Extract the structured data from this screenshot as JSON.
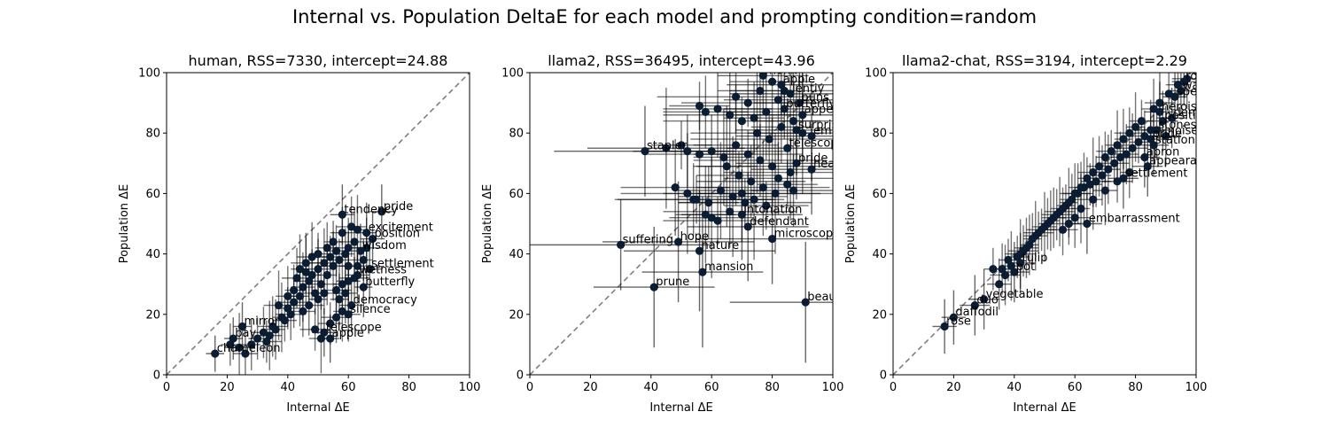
{
  "figure": {
    "suptitle": "Internal vs. Population DeltaE for each model and prompting condition=random"
  },
  "chart_data": [
    {
      "type": "scatter",
      "title": "human, RSS=7330, intercept=24.88",
      "xlabel": "Internal ΔE",
      "ylabel": "Population ΔE",
      "xlim": [
        0,
        100
      ],
      "ylim": [
        0,
        100
      ],
      "xticks": [
        "0",
        "20",
        "40",
        "60",
        "80",
        "100"
      ],
      "yticks": [
        "0",
        "20",
        "40",
        "60",
        "80",
        "100"
      ],
      "reference_line": "y = x (dashed)",
      "grid": false,
      "labeled_points": [
        {
          "label": "pride",
          "x": 71,
          "y": 54,
          "xerr": 4,
          "yerr": 9
        },
        {
          "label": "tendency",
          "x": 58,
          "y": 53,
          "xerr": 4,
          "yerr": 10
        },
        {
          "label": "excitement",
          "x": 66,
          "y": 47,
          "xerr": 3,
          "yerr": 10
        },
        {
          "label": "position",
          "x": 68,
          "y": 45,
          "xerr": 4,
          "yerr": 9
        },
        {
          "label": "wisdom",
          "x": 64,
          "y": 41,
          "xerr": 3,
          "yerr": 9
        },
        {
          "label": "settlement",
          "x": 67,
          "y": 35,
          "xerr": 4,
          "yerr": 10
        },
        {
          "label": "wetness",
          "x": 63,
          "y": 33,
          "xerr": 4,
          "yerr": 9
        },
        {
          "label": "butterfly",
          "x": 65,
          "y": 29,
          "xerr": 3,
          "yerr": 10
        },
        {
          "label": "democracy",
          "x": 61,
          "y": 23,
          "xerr": 4,
          "yerr": 9
        },
        {
          "label": "silence",
          "x": 60,
          "y": 20,
          "xerr": 4,
          "yerr": 9
        },
        {
          "label": "telescope",
          "x": 52,
          "y": 14,
          "xerr": 4,
          "yerr": 8
        },
        {
          "label": "apple",
          "x": 54,
          "y": 12,
          "xerr": 3,
          "yerr": 8
        },
        {
          "label": "mirror",
          "x": 25,
          "y": 16,
          "xerr": 3,
          "yerr": 8
        },
        {
          "label": "bay",
          "x": 22,
          "y": 12,
          "xerr": 3,
          "yerr": 7
        },
        {
          "label": "chameleon",
          "x": 16,
          "y": 7,
          "xerr": 3,
          "yerr": 6
        }
      ],
      "other_points": [
        [
          30,
          12
        ],
        [
          32,
          14
        ],
        [
          35,
          16
        ],
        [
          38,
          19
        ],
        [
          40,
          22
        ],
        [
          42,
          24
        ],
        [
          44,
          26
        ],
        [
          45,
          29
        ],
        [
          47,
          31
        ],
        [
          48,
          33
        ],
        [
          50,
          35
        ],
        [
          52,
          37
        ],
        [
          54,
          39
        ],
        [
          56,
          41
        ],
        [
          43,
          32
        ],
        [
          46,
          34
        ],
        [
          49,
          27
        ],
        [
          51,
          30
        ],
        [
          53,
          33
        ],
        [
          55,
          36
        ],
        [
          57,
          38
        ],
        [
          59,
          40
        ],
        [
          60,
          42
        ],
        [
          62,
          44
        ],
        [
          55,
          44
        ],
        [
          58,
          47
        ],
        [
          61,
          49
        ],
        [
          63,
          48
        ],
        [
          39,
          18
        ],
        [
          41,
          20
        ],
        [
          36,
          15
        ],
        [
          34,
          13
        ],
        [
          33,
          11
        ],
        [
          28,
          10
        ],
        [
          26,
          7
        ],
        [
          24,
          9
        ],
        [
          21,
          10
        ],
        [
          45,
          21
        ],
        [
          47,
          23
        ],
        [
          50,
          25
        ],
        [
          52,
          27
        ],
        [
          56,
          28
        ],
        [
          58,
          30
        ],
        [
          60,
          31
        ],
        [
          62,
          32
        ],
        [
          57,
          25
        ],
        [
          59,
          27
        ],
        [
          48,
          39
        ],
        [
          50,
          40
        ],
        [
          53,
          42
        ],
        [
          46,
          37
        ],
        [
          44,
          35
        ],
        [
          54,
          17
        ],
        [
          56,
          19
        ],
        [
          58,
          21
        ],
        [
          51,
          12
        ],
        [
          49,
          15
        ],
        [
          42,
          28
        ],
        [
          40,
          26
        ],
        [
          37,
          23
        ],
        [
          65,
          38
        ],
        [
          63,
          36
        ],
        [
          66,
          42
        ],
        [
          60,
          36
        ]
      ]
    },
    {
      "type": "scatter",
      "title": "llama2, RSS=36495, intercept=43.96",
      "xlabel": "Internal ΔE",
      "ylabel": "Population ΔE",
      "xlim": [
        0,
        100
      ],
      "ylim": [
        0,
        100
      ],
      "xticks": [
        "0",
        "20",
        "40",
        "60",
        "80",
        "100"
      ],
      "yticks": [
        "0",
        "20",
        "40",
        "60",
        "80",
        "100"
      ],
      "reference_line": "y = x (dashed)",
      "grid": false,
      "labeled_points": [
        {
          "label": "monk",
          "x": 77,
          "y": 99,
          "xerr": 15,
          "yerr": 12
        },
        {
          "label": "apple",
          "x": 83,
          "y": 96,
          "xerr": 18,
          "yerr": 10
        },
        {
          "label": "lentiy",
          "x": 86,
          "y": 93,
          "xerr": 20,
          "yerr": 10
        },
        {
          "label": "puns",
          "x": 89,
          "y": 90,
          "xerr": 15,
          "yerr": 12
        },
        {
          "label": "butterfly",
          "x": 84,
          "y": 88,
          "xerr": 20,
          "yerr": 10
        },
        {
          "label": "appearance",
          "x": 90,
          "y": 86,
          "xerr": 22,
          "yerr": 15
        },
        {
          "label": "surprise",
          "x": 88,
          "y": 81,
          "xerr": 20,
          "yerr": 15
        },
        {
          "label": "embarrassment",
          "x": 93,
          "y": 79,
          "xerr": 25,
          "yerr": 15
        },
        {
          "label": "telescope",
          "x": 85,
          "y": 75,
          "xerr": 20,
          "yerr": 15
        },
        {
          "label": "headphones",
          "x": 93,
          "y": 68,
          "xerr": 20,
          "yerr": 15
        },
        {
          "label": "pride",
          "x": 88,
          "y": 70,
          "xerr": 20,
          "yerr": 12
        },
        {
          "label": "stapler",
          "x": 38,
          "y": 74,
          "xerr": 30,
          "yerr": 15
        },
        {
          "label": "intonation",
          "x": 70,
          "y": 53,
          "xerr": 20,
          "yerr": 15
        },
        {
          "label": "defendant",
          "x": 72,
          "y": 49,
          "xerr": 20,
          "yerr": 18
        },
        {
          "label": "microscope",
          "x": 80,
          "y": 45,
          "xerr": 25,
          "yerr": 15
        },
        {
          "label": "hope",
          "x": 49,
          "y": 44,
          "xerr": 25,
          "yerr": 20
        },
        {
          "label": "suffering",
          "x": 30,
          "y": 43,
          "xerr": 30,
          "yerr": 15
        },
        {
          "label": "nature",
          "x": 56,
          "y": 41,
          "xerr": 25,
          "yerr": 20
        },
        {
          "label": "mansion",
          "x": 57,
          "y": 34,
          "xerr": 20,
          "yerr": 25
        },
        {
          "label": "prune",
          "x": 41,
          "y": 29,
          "xerr": 20,
          "yerr": 20
        },
        {
          "label": "beauty",
          "x": 91,
          "y": 24,
          "xerr": 25,
          "yerr": 20
        }
      ],
      "other_points": [
        [
          56,
          89
        ],
        [
          58,
          87
        ],
        [
          62,
          88
        ],
        [
          66,
          86
        ],
        [
          70,
          84
        ],
        [
          74,
          85
        ],
        [
          78,
          87
        ],
        [
          82,
          91
        ],
        [
          84,
          94
        ],
        [
          60,
          74
        ],
        [
          64,
          72
        ],
        [
          68,
          76
        ],
        [
          72,
          73
        ],
        [
          76,
          71
        ],
        [
          80,
          69
        ],
        [
          65,
          69
        ],
        [
          69,
          66
        ],
        [
          73,
          64
        ],
        [
          77,
          62
        ],
        [
          81,
          60
        ],
        [
          85,
          63
        ],
        [
          87,
          61
        ],
        [
          48,
          62
        ],
        [
          52,
          60
        ],
        [
          55,
          58
        ],
        [
          59,
          57
        ],
        [
          63,
          61
        ],
        [
          67,
          59
        ],
        [
          71,
          57
        ],
        [
          54,
          58
        ],
        [
          58,
          53
        ],
        [
          60,
          52
        ],
        [
          62,
          51
        ],
        [
          66,
          54
        ],
        [
          70,
          60
        ],
        [
          74,
          58
        ],
        [
          78,
          56
        ],
        [
          82,
          65
        ],
        [
          86,
          67
        ],
        [
          45,
          75
        ],
        [
          50,
          76
        ],
        [
          52,
          74
        ],
        [
          56,
          73
        ],
        [
          75,
          80
        ],
        [
          79,
          78
        ],
        [
          83,
          82
        ],
        [
          87,
          84
        ],
        [
          90,
          80
        ],
        [
          72,
          90
        ],
        [
          68,
          92
        ],
        [
          76,
          94
        ],
        [
          80,
          97
        ]
      ]
    },
    {
      "type": "scatter",
      "title": "llama2-chat, RSS=3194, intercept=2.29",
      "xlabel": "Internal ΔE",
      "ylabel": "Population ΔE",
      "xlim": [
        0,
        100
      ],
      "ylim": [
        0,
        100
      ],
      "xticks": [
        "0",
        "20",
        "40",
        "60",
        "80",
        "100"
      ],
      "yticks": [
        "0",
        "20",
        "40",
        "60",
        "80",
        "100"
      ],
      "reference_line": "y = x (dashed)",
      "grid": false,
      "labeled_points": [
        {
          "label": "robin",
          "x": 96,
          "y": 97,
          "xerr": 4,
          "yerr": 8
        },
        {
          "label": "wasp",
          "x": 95,
          "y": 94,
          "xerr": 4,
          "yerr": 8
        },
        {
          "label": "speed",
          "x": 93,
          "y": 92,
          "xerr": 4,
          "yerr": 9
        },
        {
          "label": "heroism",
          "x": 88,
          "y": 87,
          "xerr": 5,
          "yerr": 10
        },
        {
          "label": "democracy",
          "x": 92,
          "y": 85,
          "xerr": 5,
          "yerr": 10
        },
        {
          "label": "position",
          "x": 89,
          "y": 84,
          "xerr": 5,
          "yerr": 10
        },
        {
          "label": "stones",
          "x": 87,
          "y": 81,
          "xerr": 5,
          "yerr": 10
        },
        {
          "label": "noise",
          "x": 90,
          "y": 79,
          "xerr": 5,
          "yerr": 10
        },
        {
          "label": "pride",
          "x": 85,
          "y": 78,
          "xerr": 5,
          "yerr": 10
        },
        {
          "label": "station",
          "x": 86,
          "y": 76,
          "xerr": 5,
          "yerr": 10
        },
        {
          "label": "apron",
          "x": 83,
          "y": 72,
          "xerr": 5,
          "yerr": 10
        },
        {
          "label": "appearance",
          "x": 84,
          "y": 69,
          "xerr": 5,
          "yerr": 10
        },
        {
          "label": "settlement",
          "x": 76,
          "y": 65,
          "xerr": 5,
          "yerr": 10
        },
        {
          "label": "embarrassment",
          "x": 64,
          "y": 50,
          "xerr": 5,
          "yerr": 10
        },
        {
          "label": "tulip",
          "x": 42,
          "y": 37,
          "xerr": 5,
          "yerr": 10
        },
        {
          "label": "pot",
          "x": 40,
          "y": 34,
          "xerr": 5,
          "yerr": 10
        },
        {
          "label": "vegetable",
          "x": 30,
          "y": 25,
          "xerr": 5,
          "yerr": 10
        },
        {
          "label": "duo",
          "x": 27,
          "y": 23,
          "xerr": 5,
          "yerr": 10
        },
        {
          "label": "daffodil",
          "x": 20,
          "y": 19,
          "xerr": 4,
          "yerr": 9
        },
        {
          "label": "rose",
          "x": 17,
          "y": 16,
          "xerr": 4,
          "yerr": 9
        }
      ],
      "other_points": [
        [
          33,
          35
        ],
        [
          35,
          30
        ],
        [
          37,
          33
        ],
        [
          39,
          36
        ],
        [
          41,
          39
        ],
        [
          43,
          41
        ],
        [
          45,
          43
        ],
        [
          47,
          46
        ],
        [
          49,
          48
        ],
        [
          51,
          50
        ],
        [
          53,
          52
        ],
        [
          55,
          54
        ],
        [
          57,
          56
        ],
        [
          59,
          58
        ],
        [
          61,
          60
        ],
        [
          63,
          62
        ],
        [
          65,
          63
        ],
        [
          67,
          64
        ],
        [
          69,
          66
        ],
        [
          71,
          68
        ],
        [
          73,
          70
        ],
        [
          75,
          72
        ],
        [
          77,
          73
        ],
        [
          79,
          75
        ],
        [
          81,
          77
        ],
        [
          83,
          79
        ],
        [
          85,
          81
        ],
        [
          80,
          82
        ],
        [
          82,
          84
        ],
        [
          78,
          80
        ],
        [
          76,
          78
        ],
        [
          74,
          76
        ],
        [
          72,
          74
        ],
        [
          70,
          72
        ],
        [
          68,
          69
        ],
        [
          66,
          67
        ],
        [
          64,
          65
        ],
        [
          62,
          62
        ],
        [
          60,
          60
        ],
        [
          58,
          57
        ],
        [
          56,
          55
        ],
        [
          54,
          53
        ],
        [
          52,
          51
        ],
        [
          50,
          49
        ],
        [
          48,
          47
        ],
        [
          46,
          45
        ],
        [
          44,
          42
        ],
        [
          42,
          40
        ],
        [
          38,
          38
        ],
        [
          36,
          35
        ],
        [
          60,
          52
        ],
        [
          62,
          55
        ],
        [
          58,
          50
        ],
        [
          56,
          48
        ],
        [
          66,
          58
        ],
        [
          70,
          61
        ],
        [
          74,
          64
        ],
        [
          78,
          67
        ],
        [
          86,
          88
        ],
        [
          88,
          90
        ],
        [
          91,
          93
        ],
        [
          94,
          96
        ],
        [
          97,
          98
        ]
      ]
    }
  ]
}
